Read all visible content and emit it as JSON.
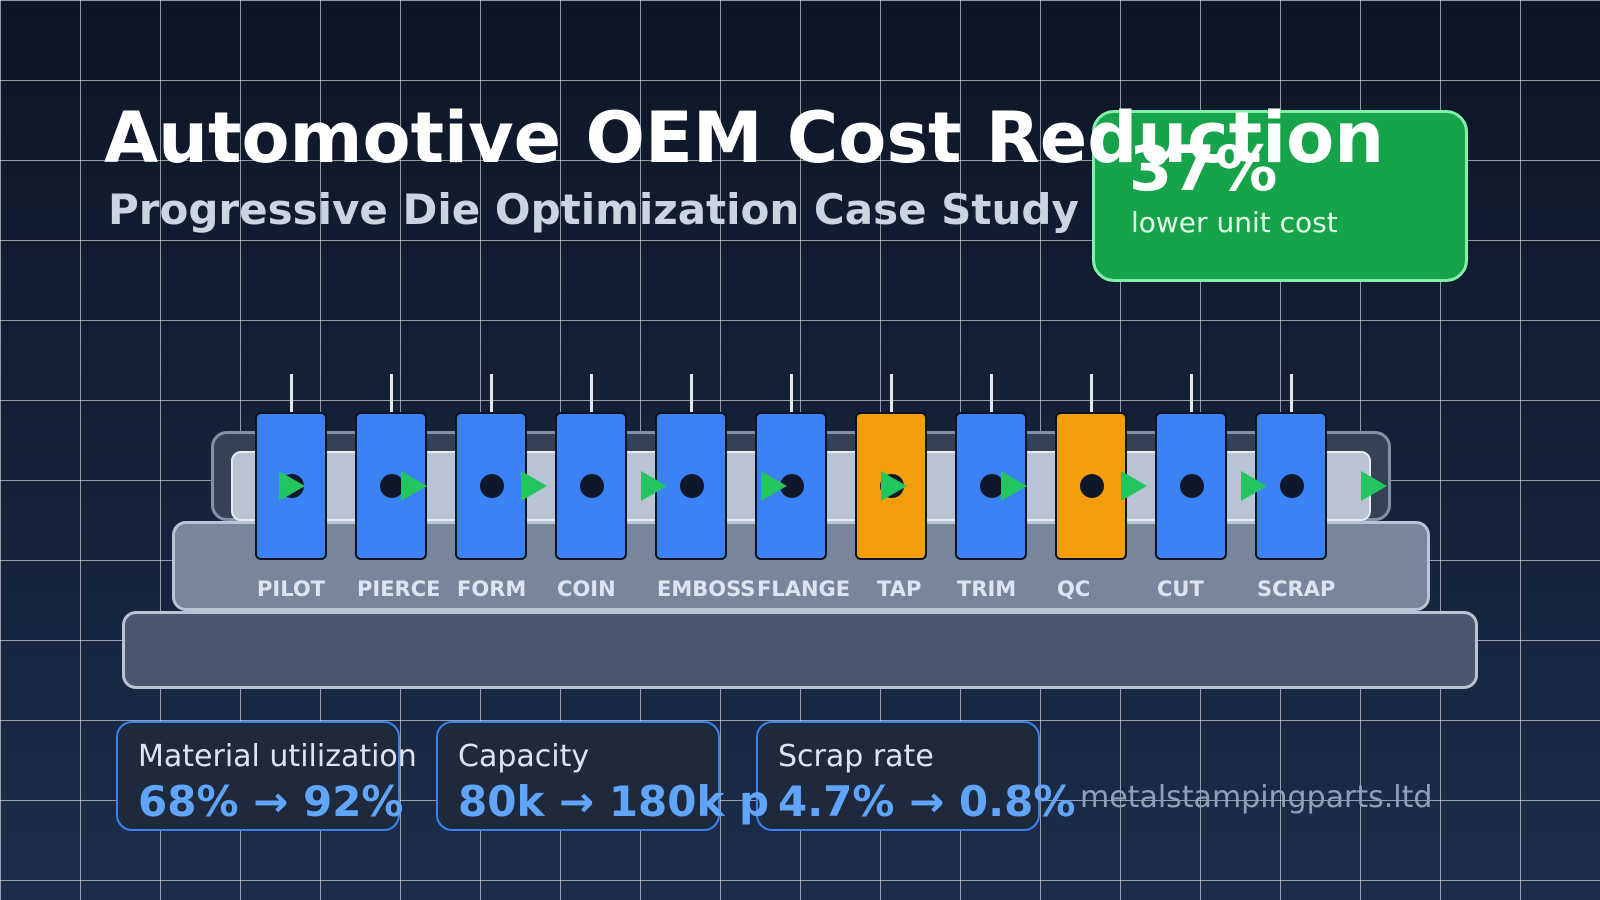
{
  "title": "Automotive OEM Cost Reduction",
  "subtitle": "Progressive Die Optimization Case Study",
  "badge": {
    "value": "37%",
    "label": "lower unit cost"
  },
  "colors": {
    "station_default": "#3b82f6",
    "station_highlight": "#f59e0b",
    "flow_arrow": "#22c55e",
    "badge": "#16a34a",
    "metric_value": "#60a5fa"
  },
  "stations": [
    {
      "label": "PILOT",
      "highlight": false
    },
    {
      "label": "PIERCE",
      "highlight": false
    },
    {
      "label": "FORM",
      "highlight": false
    },
    {
      "label": "COIN",
      "highlight": false
    },
    {
      "label": "EMBOSS",
      "highlight": false
    },
    {
      "label": "FLANGE",
      "highlight": false
    },
    {
      "label": "TAP",
      "highlight": true
    },
    {
      "label": "TRIM",
      "highlight": false
    },
    {
      "label": "QC",
      "highlight": true
    },
    {
      "label": "CUT",
      "highlight": false
    },
    {
      "label": "SCRAP",
      "highlight": false
    }
  ],
  "metrics": [
    {
      "label": "Material utilization",
      "value": "68% → 92%"
    },
    {
      "label": "Capacity",
      "value": "80k → 180k p"
    },
    {
      "label": "Scrap rate",
      "value": "4.7% → 0.8%"
    }
  ],
  "watermark": "metalstampingparts.ltd"
}
